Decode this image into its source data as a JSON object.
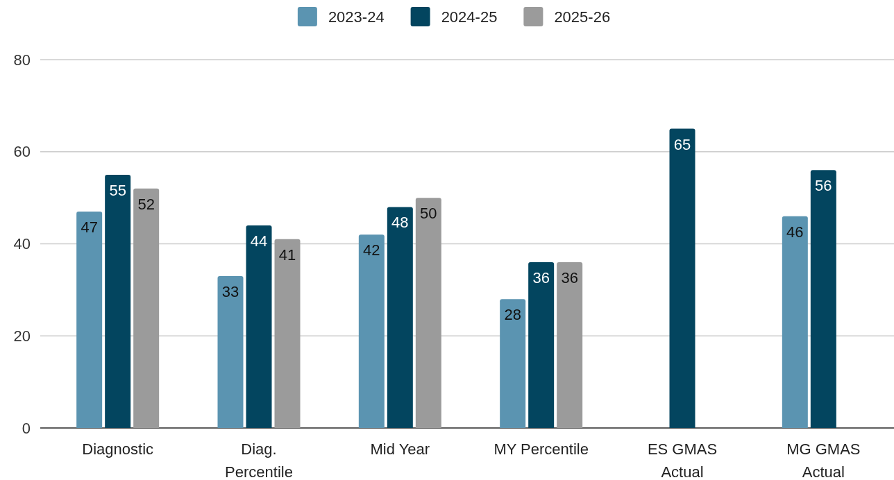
{
  "chart_data": {
    "type": "bar",
    "categories": [
      "Diagnostic",
      "Diag. Percentile",
      "Mid Year",
      "MY Percentile",
      "ES GMAS Actual",
      "MG GMAS Actual"
    ],
    "series": [
      {
        "name": "2023-24",
        "color": "#5b94b1",
        "values": [
          47,
          33,
          42,
          28,
          null,
          46
        ]
      },
      {
        "name": "2024-25",
        "color": "#03455f",
        "values": [
          55,
          44,
          48,
          36,
          65,
          56
        ]
      },
      {
        "name": "2025-26",
        "color": "#9b9b9b",
        "values": [
          52,
          41,
          50,
          36,
          null,
          null
        ]
      }
    ],
    "ylim": [
      0,
      80
    ],
    "yticks": [
      0,
      20,
      40,
      60,
      80
    ],
    "grid": "y",
    "legend": "top",
    "data_labels": true
  }
}
